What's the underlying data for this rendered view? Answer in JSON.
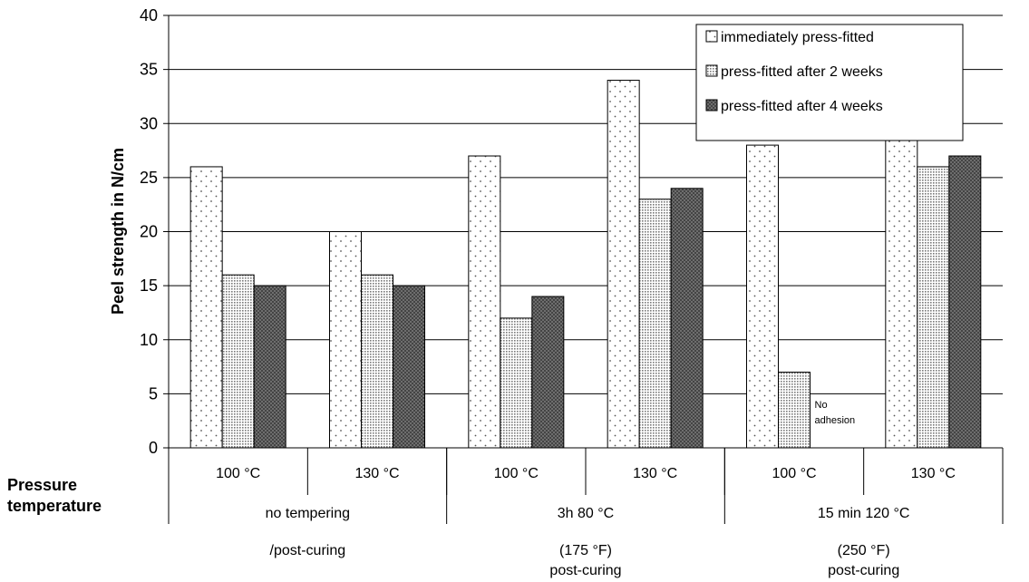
{
  "chart_data": {
    "type": "bar",
    "ylabel": "Peel strength in N/cm",
    "ylim": [
      0,
      40
    ],
    "yticks": [
      0,
      5,
      10,
      15,
      20,
      25,
      30,
      35,
      40
    ],
    "grid": true,
    "legend_position": "top-right",
    "categories": [
      "100 °C",
      "130 °C",
      "100 °C",
      "130 °C",
      "100 °C",
      "130 °C"
    ],
    "row_label": [
      "Pressure",
      "temperature"
    ],
    "groups": [
      {
        "lines": [
          "no tempering",
          "/post-curing"
        ],
        "span": [
          0,
          1
        ]
      },
      {
        "lines": [
          "3h 80 °C",
          "(175 °F)",
          "post-curing"
        ],
        "span": [
          2,
          3
        ]
      },
      {
        "lines": [
          "15 min 120 °C",
          "(250 °F)",
          "post-curing"
        ],
        "span": [
          4,
          5
        ]
      }
    ],
    "series": [
      {
        "name": "immediately press-fitted",
        "values": [
          26,
          20,
          27,
          34,
          28,
          29
        ],
        "pattern": "sparse-dots"
      },
      {
        "name": "press-fitted after 2 weeks",
        "values": [
          16,
          16,
          12,
          23,
          7,
          26
        ],
        "pattern": "dense-dots"
      },
      {
        "name": "press-fitted after 4 weeks",
        "values": [
          15,
          15,
          14,
          24,
          null,
          27
        ],
        "pattern": "dark-crosshatch"
      }
    ],
    "annotations": [
      {
        "text": [
          "No",
          "adhesion"
        ],
        "category_index": 4,
        "series_index": 2
      }
    ]
  }
}
